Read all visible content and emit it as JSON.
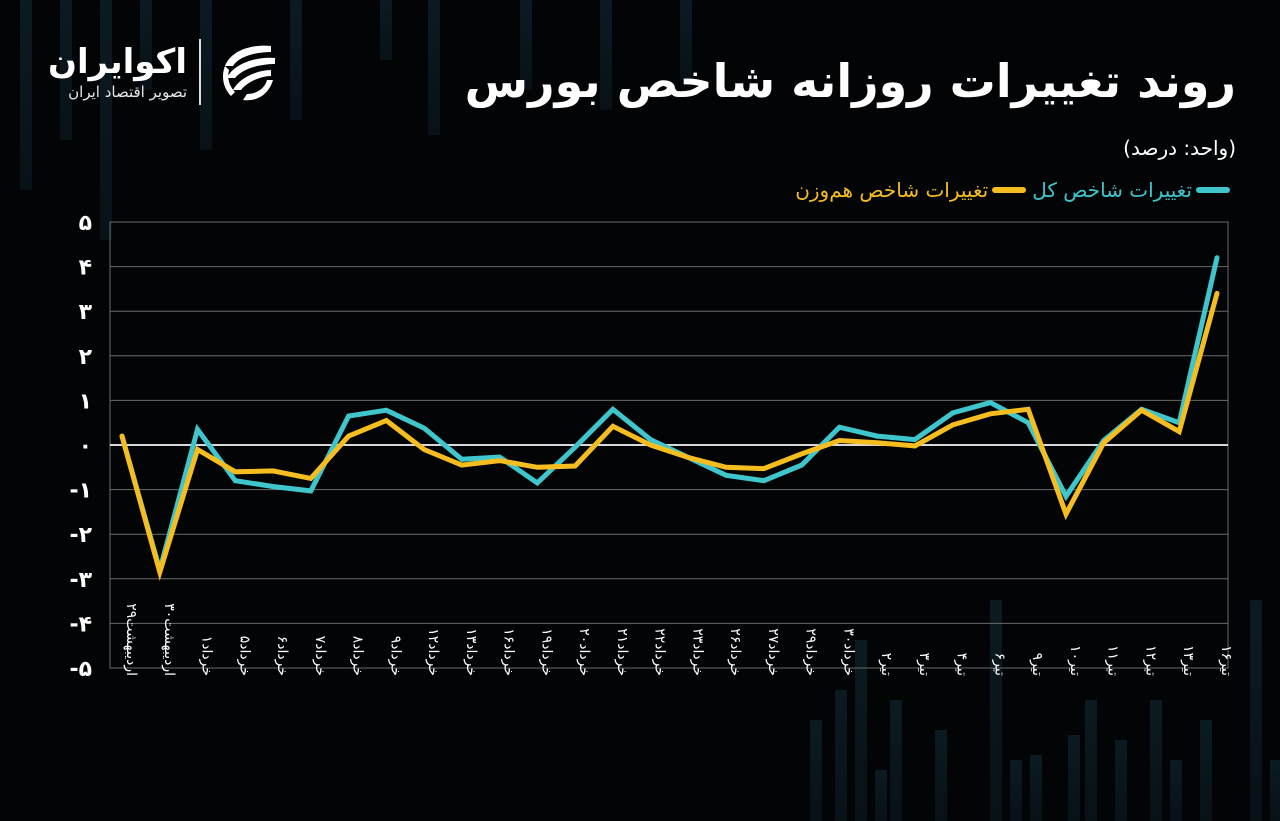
{
  "header": {
    "title": "روند تغییرات روزانه شاخص بورس",
    "unit": "(واحد: درصد)"
  },
  "logo": {
    "name": "اکوایران",
    "tagline": "تصویر اقتصاد ایران"
  },
  "colors": {
    "background": "#030406",
    "series_total": "#3fc6cc",
    "series_equal": "#f5bd1f",
    "grid": "#6a6a6a",
    "zero_line": "#d8d8d8"
  },
  "legend": [
    {
      "label": "تغییرات شاخص کل",
      "color": "#3fc6cc"
    },
    {
      "label": "تغییرات شاخص هم‌وزن",
      "color": "#f5bd1f"
    }
  ],
  "chart_data": {
    "type": "line",
    "title": "روند تغییرات روزانه شاخص بورس",
    "subtitle": "(واحد: درصد)",
    "xlabel": "",
    "ylabel": "",
    "ylim": [
      -5,
      5
    ],
    "yticks": [
      5,
      4,
      3,
      2,
      1,
      0,
      -1,
      -2,
      -3,
      -4,
      -5
    ],
    "ytick_labels": [
      "۵",
      "۴",
      "۳",
      "۲",
      "۱",
      "۰",
      "-۱",
      "-۲",
      "-۳",
      "-۴",
      "-۵"
    ],
    "grid": true,
    "legend_position": "top-right",
    "categories": [
      "اردیبهشت۲۹",
      "اردیبهشت۳۰",
      "خرداد۱",
      "خرداد۵",
      "خرداد۶",
      "خرداد۷",
      "خرداد۸",
      "خرداد۹",
      "خرداد۱۲",
      "خرداد۱۳",
      "خرداد۱۶",
      "خرداد۱۹",
      "خرداد۲۰",
      "خرداد۲۱",
      "خرداد۲۲",
      "خرداد۲۳",
      "خرداد۲۶",
      "خرداد۲۷",
      "خرداد۲۹",
      "خرداد۳۰",
      "تیر۲",
      "تیر۳",
      "تیر۴",
      "تیر۶",
      "تیر۹",
      "تیر۱۰",
      "تیر۱۱",
      "تیر۱۲",
      "تیر۱۳",
      "تیر۱۶"
    ],
    "series": [
      {
        "name": "تغییرات شاخص کل",
        "color": "#3fc6cc",
        "values": [
          0.2,
          -2.8,
          0.35,
          -0.8,
          -0.93,
          -1.03,
          0.65,
          0.78,
          0.38,
          -0.32,
          -0.27,
          -0.85,
          -0.05,
          0.8,
          0.12,
          -0.28,
          -0.68,
          -0.8,
          -0.45,
          0.4,
          0.2,
          0.12,
          0.72,
          0.95,
          0.5,
          -1.15,
          0.1,
          0.8,
          0.5,
          4.2
        ]
      },
      {
        "name": "تغییرات شاخص هم‌وزن",
        "color": "#f5bd1f",
        "values": [
          0.2,
          -2.85,
          -0.1,
          -0.6,
          -0.58,
          -0.75,
          0.2,
          0.55,
          -0.1,
          -0.45,
          -0.35,
          -0.5,
          -0.47,
          0.42,
          0.0,
          -0.28,
          -0.5,
          -0.53,
          -0.2,
          0.1,
          0.05,
          -0.02,
          0.45,
          0.7,
          0.8,
          -1.55,
          0.05,
          0.78,
          0.3,
          3.4
        ]
      }
    ]
  }
}
